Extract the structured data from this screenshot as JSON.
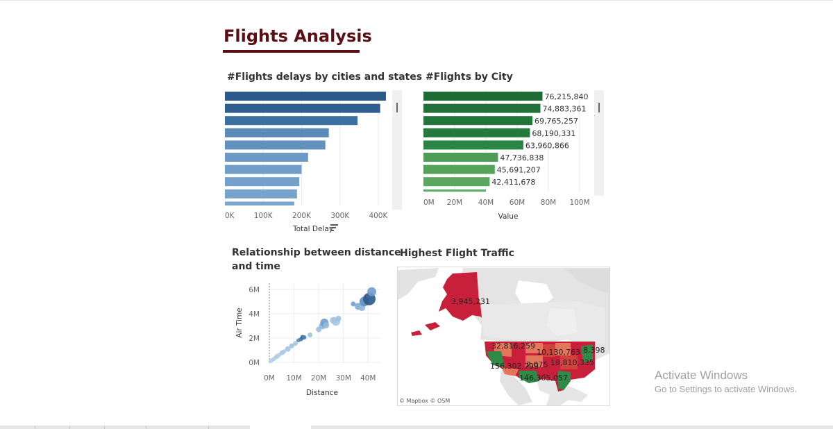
{
  "dashboard": {
    "title": "Flights Analysis"
  },
  "chart_data": [
    {
      "id": "delays",
      "type": "bar",
      "orientation": "horizontal",
      "title": "#Flights delays by cities and states",
      "xlabel": "Total Delay",
      "xlim": [
        0,
        440000
      ],
      "ticks": [
        0,
        100000,
        200000,
        300000,
        400000
      ],
      "tick_labels": [
        "0K",
        "100K",
        "200K",
        "300K",
        "400K"
      ],
      "values": [
        420000,
        405000,
        346000,
        271000,
        262000,
        217000,
        200000,
        194000,
        188000,
        181000
      ],
      "colors": [
        "#2b5a8a",
        "#2f5f91",
        "#3d6fa0",
        "#5b8ab8",
        "#6391be",
        "#6d99c6",
        "#719dc9",
        "#74a0cb",
        "#77a3cd",
        "#7aa6cf"
      ],
      "grid": true
    },
    {
      "id": "city",
      "type": "bar",
      "orientation": "horizontal",
      "title": "#Flights by City",
      "xlabel": "Value",
      "xlim": [
        0,
        112000000
      ],
      "ticks": [
        0,
        20000000,
        40000000,
        60000000,
        80000000,
        100000000
      ],
      "tick_labels": [
        "0M",
        "20M",
        "40M",
        "60M",
        "80M",
        "100M"
      ],
      "values": [
        76215840,
        74883361,
        69765257,
        68190331,
        63960866,
        47736838,
        45691207,
        42411678,
        40000000
      ],
      "labels": [
        "76,215,840",
        "74,883,361",
        "69,765,257",
        "68,190,331",
        "63,960,866",
        "47,736,838",
        "45,691,207",
        "42,411,678",
        ""
      ],
      "colors": [
        "#1f6b34",
        "#21703a",
        "#22753b",
        "#24793d",
        "#2a8444",
        "#4e9c55",
        "#55a35b",
        "#5aa85f",
        "#5fae65"
      ],
      "grid": true
    },
    {
      "id": "scatter",
      "type": "scatter",
      "title": "Relationship between distance and time",
      "title_lines": [
        "Relationship between distance",
        "and time"
      ],
      "xlabel": "Distance",
      "ylabel": "Air Time",
      "xlim": [
        0,
        45000000
      ],
      "ylim": [
        0,
        6500000
      ],
      "xticks": [
        0,
        10000000,
        20000000,
        30000000,
        40000000
      ],
      "xtick_labels": [
        "0M",
        "10M",
        "20M",
        "30M",
        "40M"
      ],
      "yticks": [
        0,
        2000000,
        4000000,
        6000000
      ],
      "ytick_labels": [
        "0M",
        "2M",
        "4M",
        "6M"
      ],
      "points": [
        {
          "x": 300000,
          "y": 60000,
          "r": 2.5,
          "c": "#b7d3ea"
        },
        {
          "x": 1000000,
          "y": 180000,
          "r": 3,
          "c": "#b3d0e8"
        },
        {
          "x": 1800000,
          "y": 280000,
          "r": 3,
          "c": "#aecde7"
        },
        {
          "x": 2500000,
          "y": 400000,
          "r": 3,
          "c": "#b5d2ea"
        },
        {
          "x": 3200000,
          "y": 500000,
          "r": 3.5,
          "c": "#aacae6"
        },
        {
          "x": 4000000,
          "y": 620000,
          "r": 3,
          "c": "#b0cee8"
        },
        {
          "x": 5200000,
          "y": 800000,
          "r": 3.5,
          "c": "#a6c7e4"
        },
        {
          "x": 6000000,
          "y": 900000,
          "r": 3,
          "c": "#aacae6"
        },
        {
          "x": 7500000,
          "y": 1100000,
          "r": 4,
          "c": "#a2c4e2"
        },
        {
          "x": 9000000,
          "y": 1350000,
          "r": 3.5,
          "c": "#9fc2e1"
        },
        {
          "x": 10500000,
          "y": 1550000,
          "r": 3.5,
          "c": "#a4c5e3"
        },
        {
          "x": 11800000,
          "y": 1800000,
          "r": 3,
          "c": "#5b8fc2"
        },
        {
          "x": 12800000,
          "y": 1900000,
          "r": 3,
          "c": "#4a80b8"
        },
        {
          "x": 13500000,
          "y": 2050000,
          "r": 3.5,
          "c": "#2f6aa8"
        },
        {
          "x": 14200000,
          "y": 2050000,
          "r": 3,
          "c": "#4d83ba"
        },
        {
          "x": 16500000,
          "y": 2250000,
          "r": 3.5,
          "c": "#9fc2e1"
        },
        {
          "x": 20000000,
          "y": 2700000,
          "r": 4,
          "c": "#9cc0e0"
        },
        {
          "x": 21500000,
          "y": 3000000,
          "r": 5,
          "c": "#8fb7db"
        },
        {
          "x": 22300000,
          "y": 3250000,
          "r": 6,
          "c": "#6f9fcd"
        },
        {
          "x": 23000000,
          "y": 3050000,
          "r": 4.5,
          "c": "#93badc"
        },
        {
          "x": 26000000,
          "y": 3450000,
          "r": 5,
          "c": "#9cc0e0"
        },
        {
          "x": 27000000,
          "y": 3350000,
          "r": 6,
          "c": "#a7c8e4"
        },
        {
          "x": 28000000,
          "y": 3600000,
          "r": 4,
          "c": "#9fc2e1"
        },
        {
          "x": 34000000,
          "y": 4800000,
          "r": 3.5,
          "c": "#6f9fcd"
        },
        {
          "x": 36000000,
          "y": 4600000,
          "r": 5,
          "c": "#7fabd4"
        },
        {
          "x": 37500000,
          "y": 4500000,
          "r": 5,
          "c": "#8fb7db"
        },
        {
          "x": 38500000,
          "y": 5000000,
          "r": 7,
          "c": "#5b8fc2"
        },
        {
          "x": 40500000,
          "y": 5200000,
          "r": 9,
          "c": "#2b5a8a"
        },
        {
          "x": 41500000,
          "y": 5800000,
          "r": 6.5,
          "c": "#6f9fcd"
        }
      ],
      "grid": true
    }
  ],
  "map": {
    "title": "Highest Flight Traffic",
    "attribution": "© Mapbox © OSM",
    "labels": [
      {
        "text": "3,945,231"
      },
      {
        "text": "32,816,259"
      },
      {
        "text": "10,130,763"
      },
      {
        "text": "8,398"
      },
      {
        "text": "156,302,799"
      },
      {
        "text": "2,075"
      },
      {
        "text": "18,810,335"
      },
      {
        "text": "146,305,057"
      }
    ],
    "colors": {
      "high": "#c8203a",
      "mid": "#e4775b",
      "low": "#2f8a48",
      "land": "#e8e8e8",
      "water": "#ffffff"
    }
  },
  "watermark": {
    "title": "Activate Windows",
    "subtitle": "Go to Settings to activate Windows."
  }
}
